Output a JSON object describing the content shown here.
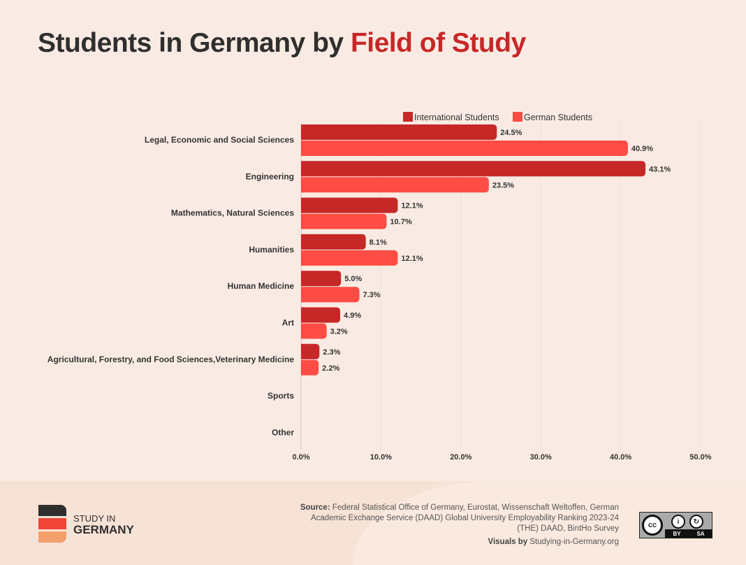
{
  "title": {
    "part1": "Students in Germany by ",
    "part2": "Field of Study"
  },
  "colors": {
    "international": "#c62828",
    "german": "#ff4c45",
    "title_accent": "#c62828"
  },
  "chart_data": {
    "type": "bar",
    "orientation": "horizontal",
    "title": "Students in Germany by Field of Study",
    "categories": [
      "Legal, Economic and Social Sciences",
      "Engineering",
      "Mathematics, Natural Sciences",
      "Humanities",
      "Human Medicine",
      "Art",
      "Agricultural, Forestry, and Food Sciences,Veterinary Medicine",
      "Sports",
      "Other"
    ],
    "series": [
      {
        "name": "International Students",
        "color": "#c62828",
        "values": [
          24.5,
          43.1,
          12.1,
          8.1,
          5.0,
          4.9,
          2.3,
          null,
          null
        ],
        "labels": [
          "24.5%",
          "43.1%",
          "12.1%",
          "8.1%",
          "5.0%",
          "4.9%",
          "2.3%",
          "",
          ""
        ]
      },
      {
        "name": "German Students",
        "color": "#ff4c45",
        "values": [
          40.9,
          23.5,
          10.7,
          12.1,
          7.3,
          3.2,
          2.2,
          null,
          null
        ],
        "labels": [
          "40.9%",
          "23.5%",
          "10.7%",
          "12.1%",
          "7.3%",
          "3.2%",
          "2.2%",
          "",
          ""
        ]
      }
    ],
    "xlim": [
      0,
      50
    ],
    "xticks": [
      "0.0%",
      "10.0%",
      "20.0%",
      "30.0%",
      "40.0%",
      "50.0%"
    ],
    "grid": true,
    "legend": "top"
  },
  "footer": {
    "logo": {
      "line1": "STUDY IN",
      "line2": "GERMANY"
    },
    "source_label": "Source:",
    "source_text": "Federal Statistical Office of Germany, Eurostat, Wissenschaft Weltoffen, German Academic Exchange Service (DAAD) Global University Employability Ranking 2023-24 (THE) DAAD, BintHo Survey",
    "visuals_label": "Visuals by",
    "visuals_text": "Studying-in-Germany.org",
    "license": {
      "cc": "cc",
      "by": "BY",
      "sa": "SA"
    }
  }
}
